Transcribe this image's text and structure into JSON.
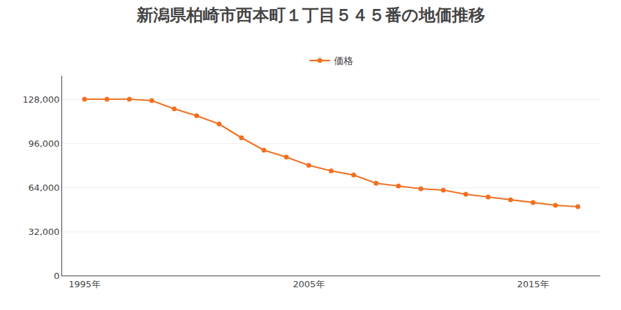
{
  "chart_data": {
    "type": "line",
    "title": "新潟県柏崎市西本町１丁目５４５番の地価推移",
    "x": [
      1995,
      1996,
      1997,
      1998,
      1999,
      2000,
      2001,
      2002,
      2003,
      2004,
      2005,
      2006,
      2007,
      2008,
      2009,
      2010,
      2011,
      2012,
      2013,
      2014,
      2015,
      2016,
      2017
    ],
    "series": [
      {
        "name": "価格",
        "color": "#f07020",
        "marker": "circle",
        "values": [
          128000,
          128000,
          128000,
          127000,
          121000,
          116000,
          110000,
          100000,
          91000,
          86000,
          80000,
          76000,
          73000,
          67000,
          65000,
          63000,
          62000,
          59000,
          57000,
          55000,
          53000,
          51000,
          50000
        ]
      }
    ],
    "xlim": [
      1994,
      2018
    ],
    "xticks": [
      {
        "value": 1995,
        "label": "1995年"
      },
      {
        "value": 2005,
        "label": "2005年"
      },
      {
        "value": 2015,
        "label": "2015年"
      }
    ],
    "ylim": [
      0,
      145000
    ],
    "yticks": [
      0,
      {
        "value": 32000,
        "label": "32,000"
      },
      {
        "value": 64000,
        "label": "64,000"
      },
      {
        "value": 96000,
        "label": "96,000"
      },
      {
        "value": 128000,
        "label": "128,000"
      }
    ],
    "grid": "y",
    "legend": "top"
  }
}
